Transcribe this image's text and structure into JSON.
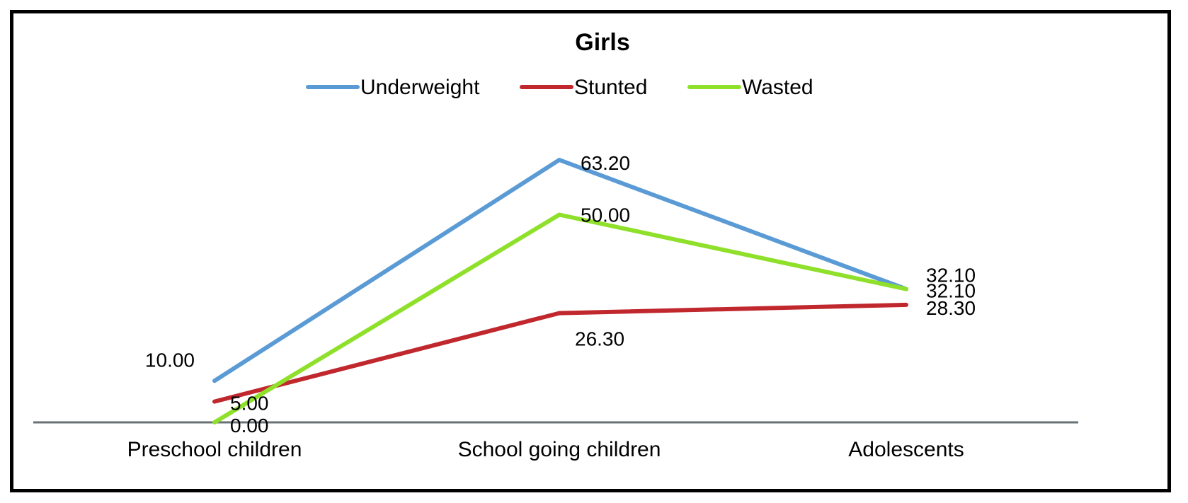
{
  "chart_data": {
    "type": "line",
    "title": "Girls",
    "categories": [
      "Preschool children",
      "School going children",
      "Adolescents"
    ],
    "series": [
      {
        "name": "Underweight",
        "color": "#5b9bd5",
        "values": [
          10.0,
          63.2,
          32.1
        ],
        "labels": [
          "10.00",
          "63.20",
          "32.10"
        ]
      },
      {
        "name": "Stunted",
        "color": "#c0282e",
        "values": [
          5.0,
          26.3,
          28.3
        ],
        "labels": [
          "5.00",
          "26.30",
          "28.30"
        ]
      },
      {
        "name": "Wasted",
        "color": "#8fe02a",
        "values": [
          0.0,
          50.0,
          32.1
        ],
        "labels": [
          "0.00",
          "50.00",
          "32.10"
        ]
      }
    ],
    "xlabel": "",
    "ylabel": "",
    "ylim": [
      0,
      70
    ],
    "grid": false,
    "legend_position": "top-center",
    "axis_color": "#687274"
  }
}
